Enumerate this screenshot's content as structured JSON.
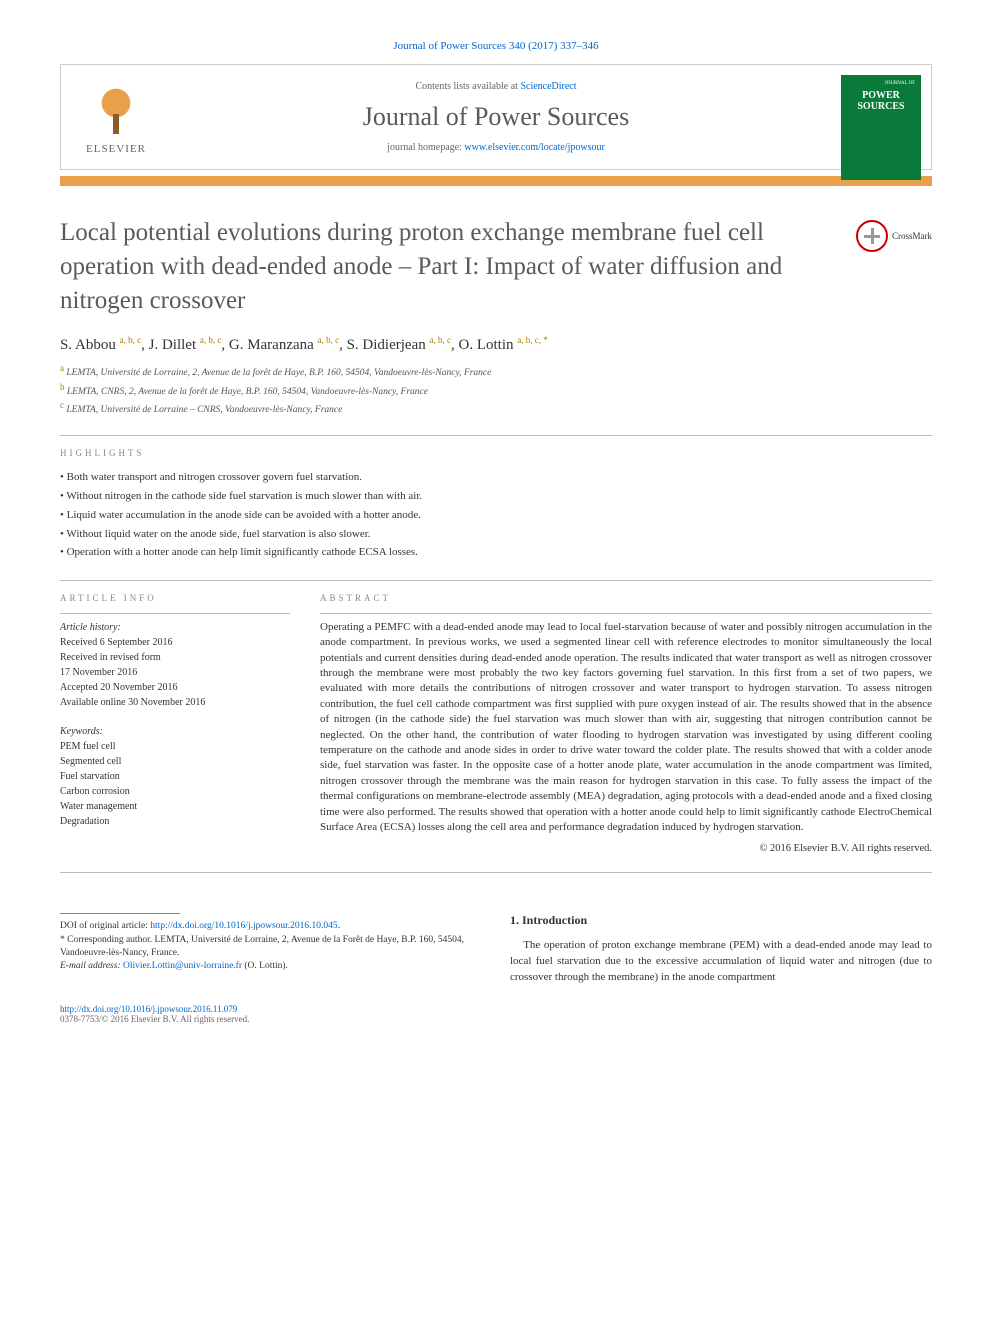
{
  "citation": "Journal of Power Sources 340 (2017) 337–346",
  "header": {
    "contents_prefix": "Contents lists available at ",
    "contents_link": "ScienceDirect",
    "journal_name": "Journal of Power Sources",
    "homepage_prefix": "journal homepage: ",
    "homepage_url": "www.elsevier.com/locate/jpowsour",
    "publisher_logo_text": "ELSEVIER",
    "cover": {
      "label": "JOURNAL OF",
      "title": "POWER SOURCES"
    }
  },
  "crossmark_label": "CrossMark",
  "title": "Local potential evolutions during proton exchange membrane fuel cell operation with dead-ended anode – Part I: Impact of water diffusion and nitrogen crossover",
  "authors_html": [
    {
      "name": "S. Abbou",
      "aff": "a, b, c"
    },
    {
      "name": "J. Dillet",
      "aff": "a, b, c"
    },
    {
      "name": "G. Maranzana",
      "aff": "a, b, c"
    },
    {
      "name": "S. Didierjean",
      "aff": "a, b, c"
    },
    {
      "name": "O. Lottin",
      "aff": "a, b, c, *"
    }
  ],
  "affiliations": [
    {
      "key": "a",
      "text": "LEMTA, Université de Lorraine, 2, Avenue de la forêt de Haye, B.P. 160, 54504, Vandoeuvre-lès-Nancy, France"
    },
    {
      "key": "b",
      "text": "LEMTA, CNRS, 2, Avenue de la forêt de Haye, B.P. 160, 54504, Vandoeuvre-lès-Nancy, France"
    },
    {
      "key": "c",
      "text": "LEMTA, Université de Lorraine – CNRS, Vandoeuvre-lès-Nancy, France"
    }
  ],
  "highlights_label": "HIGHLIGHTS",
  "highlights": [
    "Both water transport and nitrogen crossover govern fuel starvation.",
    "Without nitrogen in the cathode side fuel starvation is much slower than with air.",
    "Liquid water accumulation in the anode side can be avoided with a hotter anode.",
    "Without liquid water on the anode side, fuel starvation is also slower.",
    "Operation with a hotter anode can help limit significantly cathode ECSA losses."
  ],
  "article_info_label": "ARTICLE INFO",
  "abstract_label": "ABSTRACT",
  "history_label": "Article history:",
  "history": [
    "Received 6 September 2016",
    "Received in revised form",
    "17 November 2016",
    "Accepted 20 November 2016",
    "Available online 30 November 2016"
  ],
  "keywords_label": "Keywords:",
  "keywords": [
    "PEM fuel cell",
    "Segmented cell",
    "Fuel starvation",
    "Carbon corrosion",
    "Water management",
    "Degradation"
  ],
  "abstract": "Operating a PEMFC with a dead-ended anode may lead to local fuel-starvation because of water and possibly nitrogen accumulation in the anode compartment. In previous works, we used a segmented linear cell with reference electrodes to monitor simultaneously the local potentials and current densities during dead-ended anode operation. The results indicated that water transport as well as nitrogen crossover through the membrane were most probably the two key factors governing fuel starvation. In this first from a set of two papers, we evaluated with more details the contributions of nitrogen crossover and water transport to hydrogen starvation. To assess nitrogen contribution, the fuel cell cathode compartment was first supplied with pure oxygen instead of air. The results showed that in the absence of nitrogen (in the cathode side) the fuel starvation was much slower than with air, suggesting that nitrogen contribution cannot be neglected. On the other hand, the contribution of water flooding to hydrogen starvation was investigated by using different cooling temperature on the cathode and anode sides in order to drive water toward the colder plate. The results showed that with a colder anode side, fuel starvation was faster. In the opposite case of a hotter anode plate, water accumulation in the anode compartment was limited, nitrogen crossover through the membrane was the main reason for hydrogen starvation in this case. To fully assess the impact of the thermal configurations on membrane-electrode assembly (MEA) degradation, aging protocols with a dead-ended anode and a fixed closing time were also performed. The results showed that operation with a hotter anode could help to limit significantly cathode ElectroChemical Surface Area (ECSA) losses along the cell area and performance degradation induced by hydrogen starvation.",
  "copyright": "© 2016 Elsevier B.V. All rights reserved.",
  "footnotes": {
    "doi_prefix": "DOI of original article: ",
    "doi_link": "http://dx.doi.org/10.1016/j.jpowsour.2016.10.045",
    "doi_suffix": ".",
    "corresponding": "* Corresponding author. LEMTA, Université de Lorraine, 2, Avenue de la Forêt de Haye, B.P. 160, 54504, Vandoeuvre-lès-Nancy, France.",
    "email_label": "E-mail address: ",
    "email": "Olivier.Lottin@univ-lorraine.fr",
    "email_author": " (O. Lottin)."
  },
  "intro": {
    "heading": "1. Introduction",
    "para": "The operation of proton exchange membrane (PEM) with a dead-ended anode may lead to local fuel starvation due to the excessive accumulation of liquid water and nitrogen (due to crossover through the membrane) in the anode compartment"
  },
  "footer": {
    "doi": "http://dx.doi.org/10.1016/j.jpowsour.2016.11.079",
    "issn": "0378-7753/© 2016 Elsevier B.V. All rights reserved."
  },
  "colors": {
    "accent_orange": "#e8a04a",
    "link": "#0066cc",
    "cover_green": "#0a7a3a"
  }
}
